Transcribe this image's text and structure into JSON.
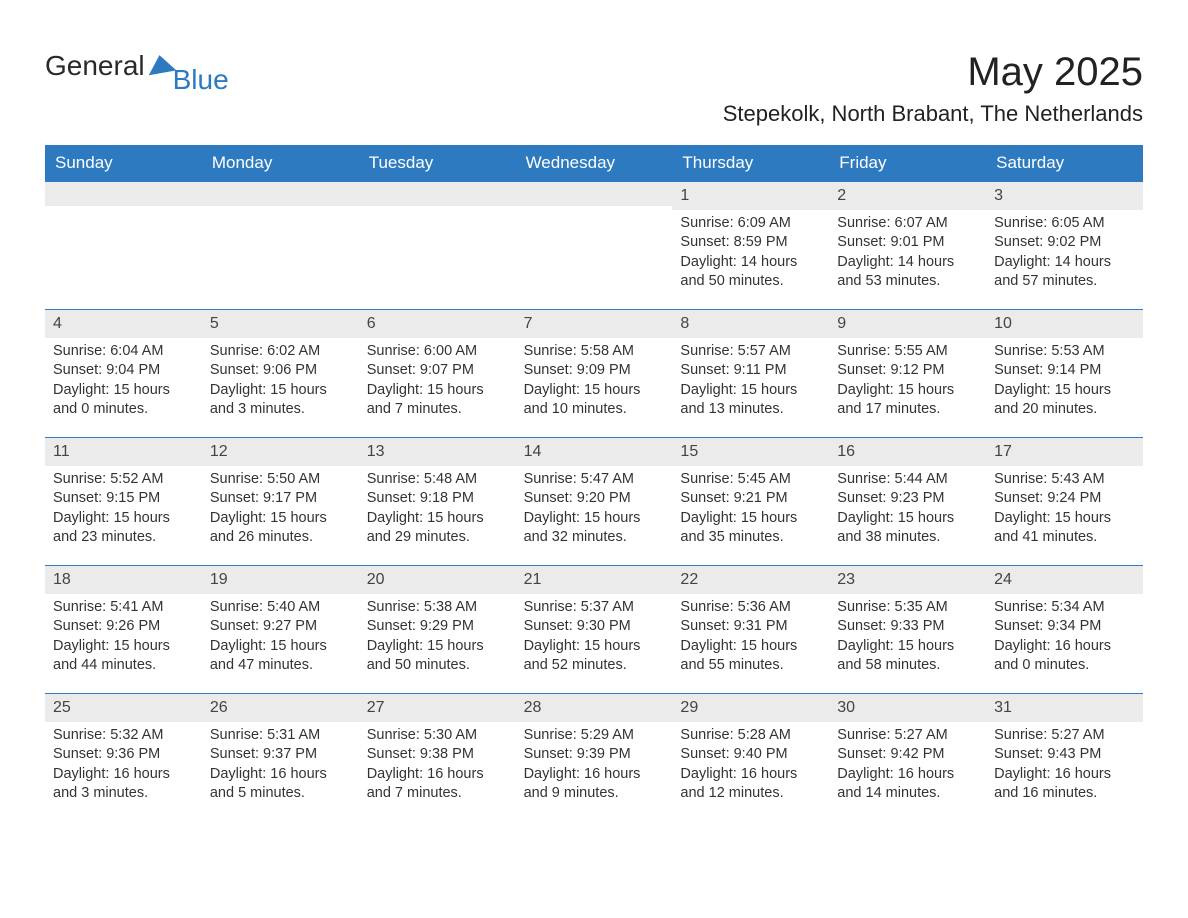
{
  "logo": {
    "text1": "General",
    "text2": "Blue"
  },
  "title": "May 2025",
  "location": "Stepekolk, North Brabant, The Netherlands",
  "colors": {
    "header_bg": "#2d7ac0",
    "header_text": "#ffffff",
    "daynum_bg": "#ebebeb",
    "border": "#2d7ac0",
    "text": "#333333",
    "background": "#ffffff"
  },
  "day_names": [
    "Sunday",
    "Monday",
    "Tuesday",
    "Wednesday",
    "Thursday",
    "Friday",
    "Saturday"
  ],
  "weeks": [
    [
      {
        "blank": true
      },
      {
        "blank": true
      },
      {
        "blank": true
      },
      {
        "blank": true
      },
      {
        "day": "1",
        "sunrise": "Sunrise: 6:09 AM",
        "sunset": "Sunset: 8:59 PM",
        "daylight1": "Daylight: 14 hours",
        "daylight2": "and 50 minutes."
      },
      {
        "day": "2",
        "sunrise": "Sunrise: 6:07 AM",
        "sunset": "Sunset: 9:01 PM",
        "daylight1": "Daylight: 14 hours",
        "daylight2": "and 53 minutes."
      },
      {
        "day": "3",
        "sunrise": "Sunrise: 6:05 AM",
        "sunset": "Sunset: 9:02 PM",
        "daylight1": "Daylight: 14 hours",
        "daylight2": "and 57 minutes."
      }
    ],
    [
      {
        "day": "4",
        "sunrise": "Sunrise: 6:04 AM",
        "sunset": "Sunset: 9:04 PM",
        "daylight1": "Daylight: 15 hours",
        "daylight2": "and 0 minutes."
      },
      {
        "day": "5",
        "sunrise": "Sunrise: 6:02 AM",
        "sunset": "Sunset: 9:06 PM",
        "daylight1": "Daylight: 15 hours",
        "daylight2": "and 3 minutes."
      },
      {
        "day": "6",
        "sunrise": "Sunrise: 6:00 AM",
        "sunset": "Sunset: 9:07 PM",
        "daylight1": "Daylight: 15 hours",
        "daylight2": "and 7 minutes."
      },
      {
        "day": "7",
        "sunrise": "Sunrise: 5:58 AM",
        "sunset": "Sunset: 9:09 PM",
        "daylight1": "Daylight: 15 hours",
        "daylight2": "and 10 minutes."
      },
      {
        "day": "8",
        "sunrise": "Sunrise: 5:57 AM",
        "sunset": "Sunset: 9:11 PM",
        "daylight1": "Daylight: 15 hours",
        "daylight2": "and 13 minutes."
      },
      {
        "day": "9",
        "sunrise": "Sunrise: 5:55 AM",
        "sunset": "Sunset: 9:12 PM",
        "daylight1": "Daylight: 15 hours",
        "daylight2": "and 17 minutes."
      },
      {
        "day": "10",
        "sunrise": "Sunrise: 5:53 AM",
        "sunset": "Sunset: 9:14 PM",
        "daylight1": "Daylight: 15 hours",
        "daylight2": "and 20 minutes."
      }
    ],
    [
      {
        "day": "11",
        "sunrise": "Sunrise: 5:52 AM",
        "sunset": "Sunset: 9:15 PM",
        "daylight1": "Daylight: 15 hours",
        "daylight2": "and 23 minutes."
      },
      {
        "day": "12",
        "sunrise": "Sunrise: 5:50 AM",
        "sunset": "Sunset: 9:17 PM",
        "daylight1": "Daylight: 15 hours",
        "daylight2": "and 26 minutes."
      },
      {
        "day": "13",
        "sunrise": "Sunrise: 5:48 AM",
        "sunset": "Sunset: 9:18 PM",
        "daylight1": "Daylight: 15 hours",
        "daylight2": "and 29 minutes."
      },
      {
        "day": "14",
        "sunrise": "Sunrise: 5:47 AM",
        "sunset": "Sunset: 9:20 PM",
        "daylight1": "Daylight: 15 hours",
        "daylight2": "and 32 minutes."
      },
      {
        "day": "15",
        "sunrise": "Sunrise: 5:45 AM",
        "sunset": "Sunset: 9:21 PM",
        "daylight1": "Daylight: 15 hours",
        "daylight2": "and 35 minutes."
      },
      {
        "day": "16",
        "sunrise": "Sunrise: 5:44 AM",
        "sunset": "Sunset: 9:23 PM",
        "daylight1": "Daylight: 15 hours",
        "daylight2": "and 38 minutes."
      },
      {
        "day": "17",
        "sunrise": "Sunrise: 5:43 AM",
        "sunset": "Sunset: 9:24 PM",
        "daylight1": "Daylight: 15 hours",
        "daylight2": "and 41 minutes."
      }
    ],
    [
      {
        "day": "18",
        "sunrise": "Sunrise: 5:41 AM",
        "sunset": "Sunset: 9:26 PM",
        "daylight1": "Daylight: 15 hours",
        "daylight2": "and 44 minutes."
      },
      {
        "day": "19",
        "sunrise": "Sunrise: 5:40 AM",
        "sunset": "Sunset: 9:27 PM",
        "daylight1": "Daylight: 15 hours",
        "daylight2": "and 47 minutes."
      },
      {
        "day": "20",
        "sunrise": "Sunrise: 5:38 AM",
        "sunset": "Sunset: 9:29 PM",
        "daylight1": "Daylight: 15 hours",
        "daylight2": "and 50 minutes."
      },
      {
        "day": "21",
        "sunrise": "Sunrise: 5:37 AM",
        "sunset": "Sunset: 9:30 PM",
        "daylight1": "Daylight: 15 hours",
        "daylight2": "and 52 minutes."
      },
      {
        "day": "22",
        "sunrise": "Sunrise: 5:36 AM",
        "sunset": "Sunset: 9:31 PM",
        "daylight1": "Daylight: 15 hours",
        "daylight2": "and 55 minutes."
      },
      {
        "day": "23",
        "sunrise": "Sunrise: 5:35 AM",
        "sunset": "Sunset: 9:33 PM",
        "daylight1": "Daylight: 15 hours",
        "daylight2": "and 58 minutes."
      },
      {
        "day": "24",
        "sunrise": "Sunrise: 5:34 AM",
        "sunset": "Sunset: 9:34 PM",
        "daylight1": "Daylight: 16 hours",
        "daylight2": "and 0 minutes."
      }
    ],
    [
      {
        "day": "25",
        "sunrise": "Sunrise: 5:32 AM",
        "sunset": "Sunset: 9:36 PM",
        "daylight1": "Daylight: 16 hours",
        "daylight2": "and 3 minutes."
      },
      {
        "day": "26",
        "sunrise": "Sunrise: 5:31 AM",
        "sunset": "Sunset: 9:37 PM",
        "daylight1": "Daylight: 16 hours",
        "daylight2": "and 5 minutes."
      },
      {
        "day": "27",
        "sunrise": "Sunrise: 5:30 AM",
        "sunset": "Sunset: 9:38 PM",
        "daylight1": "Daylight: 16 hours",
        "daylight2": "and 7 minutes."
      },
      {
        "day": "28",
        "sunrise": "Sunrise: 5:29 AM",
        "sunset": "Sunset: 9:39 PM",
        "daylight1": "Daylight: 16 hours",
        "daylight2": "and 9 minutes."
      },
      {
        "day": "29",
        "sunrise": "Sunrise: 5:28 AM",
        "sunset": "Sunset: 9:40 PM",
        "daylight1": "Daylight: 16 hours",
        "daylight2": "and 12 minutes."
      },
      {
        "day": "30",
        "sunrise": "Sunrise: 5:27 AM",
        "sunset": "Sunset: 9:42 PM",
        "daylight1": "Daylight: 16 hours",
        "daylight2": "and 14 minutes."
      },
      {
        "day": "31",
        "sunrise": "Sunrise: 5:27 AM",
        "sunset": "Sunset: 9:43 PM",
        "daylight1": "Daylight: 16 hours",
        "daylight2": "and 16 minutes."
      }
    ]
  ]
}
